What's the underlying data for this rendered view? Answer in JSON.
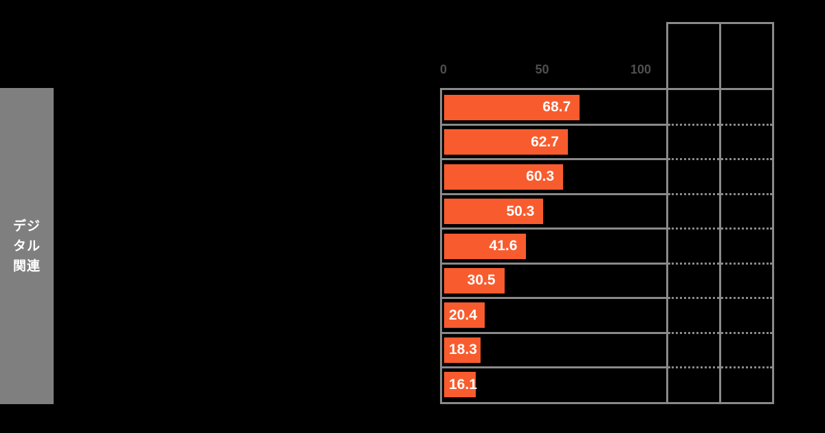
{
  "canvas": {
    "background": "#000000"
  },
  "sidebar": {
    "label": "デジタル関連",
    "label_multiline": "デジ\nタル\n関連",
    "bg_color": "#7f7f7f",
    "text_color": "#ffffff"
  },
  "chart_data": {
    "type": "bar",
    "orientation": "horizontal",
    "title": "",
    "group_label": "デジタル関連",
    "values": [
      68.7,
      62.7,
      60.3,
      50.3,
      41.6,
      30.5,
      20.4,
      18.3,
      16.1
    ],
    "value_labels": [
      "68.7",
      "62.7",
      "60.3",
      "50.3",
      "41.6",
      "30.5",
      "20.4",
      "18.3",
      "16.1"
    ],
    "x_ticks": [
      "0",
      "50",
      "100"
    ],
    "x_tick_values": [
      0,
      50,
      100
    ],
    "xlim": [
      0,
      113
    ],
    "legend": "none",
    "grid": "row-separators",
    "bar_color": "#f85c2e",
    "value_label_color": "#ffffff",
    "axis_tick_color": "#4f4f4f",
    "line_color": "#8a8a8a"
  },
  "side_table": {
    "columns": 2,
    "rows": 9,
    "header_cells": [
      "",
      ""
    ],
    "outer_border": "solid",
    "row_separator_style": "dotted",
    "line_color": "#8a8a8a"
  }
}
